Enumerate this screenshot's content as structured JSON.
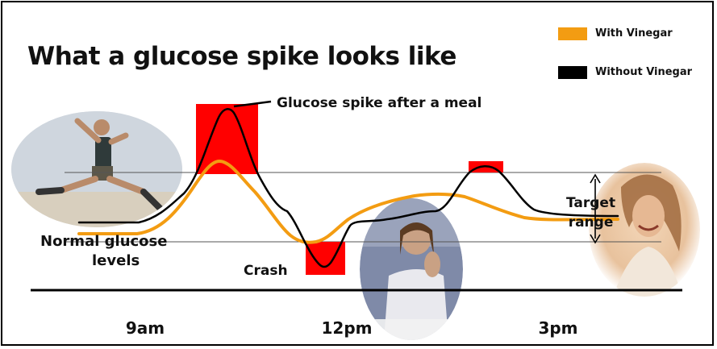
{
  "title": "What a glucose spike looks like",
  "legend": [
    {
      "label": "With Vinegar",
      "color": "#f39c12",
      "icon": "orange-swatch"
    },
    {
      "label": "Without Vinegar",
      "color": "#000000",
      "icon": "black-swatch"
    }
  ],
  "annotations": {
    "spike": "Glucose spike after a meal",
    "crash": "Crash",
    "normal_line1": "Normal glucose",
    "normal_line2": "levels",
    "target_line1": "Target",
    "target_line2": "range"
  },
  "highlight_color": "#ff0000",
  "chart_data": {
    "type": "line",
    "title": "What a glucose spike looks like",
    "x_ticks": [
      "9am",
      "12pm",
      "3pm"
    ],
    "series": [
      {
        "name": "Without Vinegar",
        "color": "#000000"
      },
      {
        "name": "With Vinegar",
        "color": "#f39c12"
      }
    ],
    "target_range": "between upper and lower reference lines",
    "grid": false,
    "legend_position": "top-right"
  },
  "photos": [
    {
      "name": "jumping-man-photo"
    },
    {
      "name": "tired-woman-photo"
    },
    {
      "name": "happy-woman-photo"
    }
  ]
}
